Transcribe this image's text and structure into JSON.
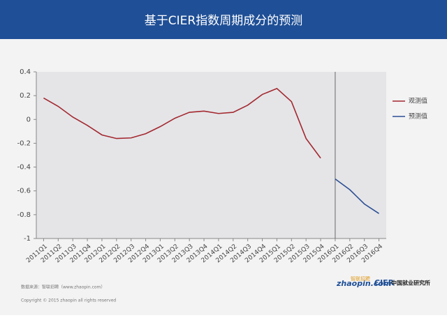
{
  "chart_data": {
    "type": "line",
    "title": "基于CIER指数周期成分的预测",
    "categories": [
      "2011Q1",
      "2011Q2",
      "2011Q3",
      "2011Q4",
      "2012Q1",
      "2012Q2",
      "2012Q3",
      "2012Q4",
      "2013Q1",
      "2013Q2",
      "2013Q3",
      "2013Q4",
      "2014Q1",
      "2014Q2",
      "2014Q3",
      "2014Q4",
      "2015Q1",
      "2015Q2",
      "2015Q3",
      "2015Q4",
      "2016Q1",
      "2016Q2",
      "2016Q3",
      "2016Q4"
    ],
    "series": [
      {
        "name": "观测值",
        "color": "#a3282f",
        "values": [
          0.18,
          0.11,
          0.02,
          -0.05,
          -0.13,
          -0.16,
          -0.155,
          -0.12,
          -0.06,
          0.01,
          0.06,
          0.07,
          0.05,
          0.06,
          0.12,
          0.21,
          0.26,
          0.15,
          -0.16,
          -0.325,
          null,
          null,
          null,
          null
        ]
      },
      {
        "name": "预测值",
        "color": "#2c4f94",
        "values": [
          null,
          null,
          null,
          null,
          null,
          null,
          null,
          null,
          null,
          null,
          null,
          null,
          null,
          null,
          null,
          null,
          null,
          null,
          null,
          null,
          -0.5,
          -0.59,
          -0.71,
          -0.79
        ]
      }
    ],
    "ylim": [
      -1,
      0.4
    ],
    "yticks": [
      0.4,
      0.2,
      0,
      -0.2,
      -0.4,
      -0.6,
      -0.8,
      -1
    ],
    "divider_at": "2016Q1",
    "legend": "right"
  },
  "footer": {
    "source": "数据来源：智联招聘（www.zhaopin.com）",
    "copyright": "Copyright © 2015 zhaopin all rights reserved",
    "logo1": "zhaopin.com",
    "logo1_cn": "智联招聘",
    "logo2": "CIER",
    "logo2_cn": "中国就业研究所"
  }
}
